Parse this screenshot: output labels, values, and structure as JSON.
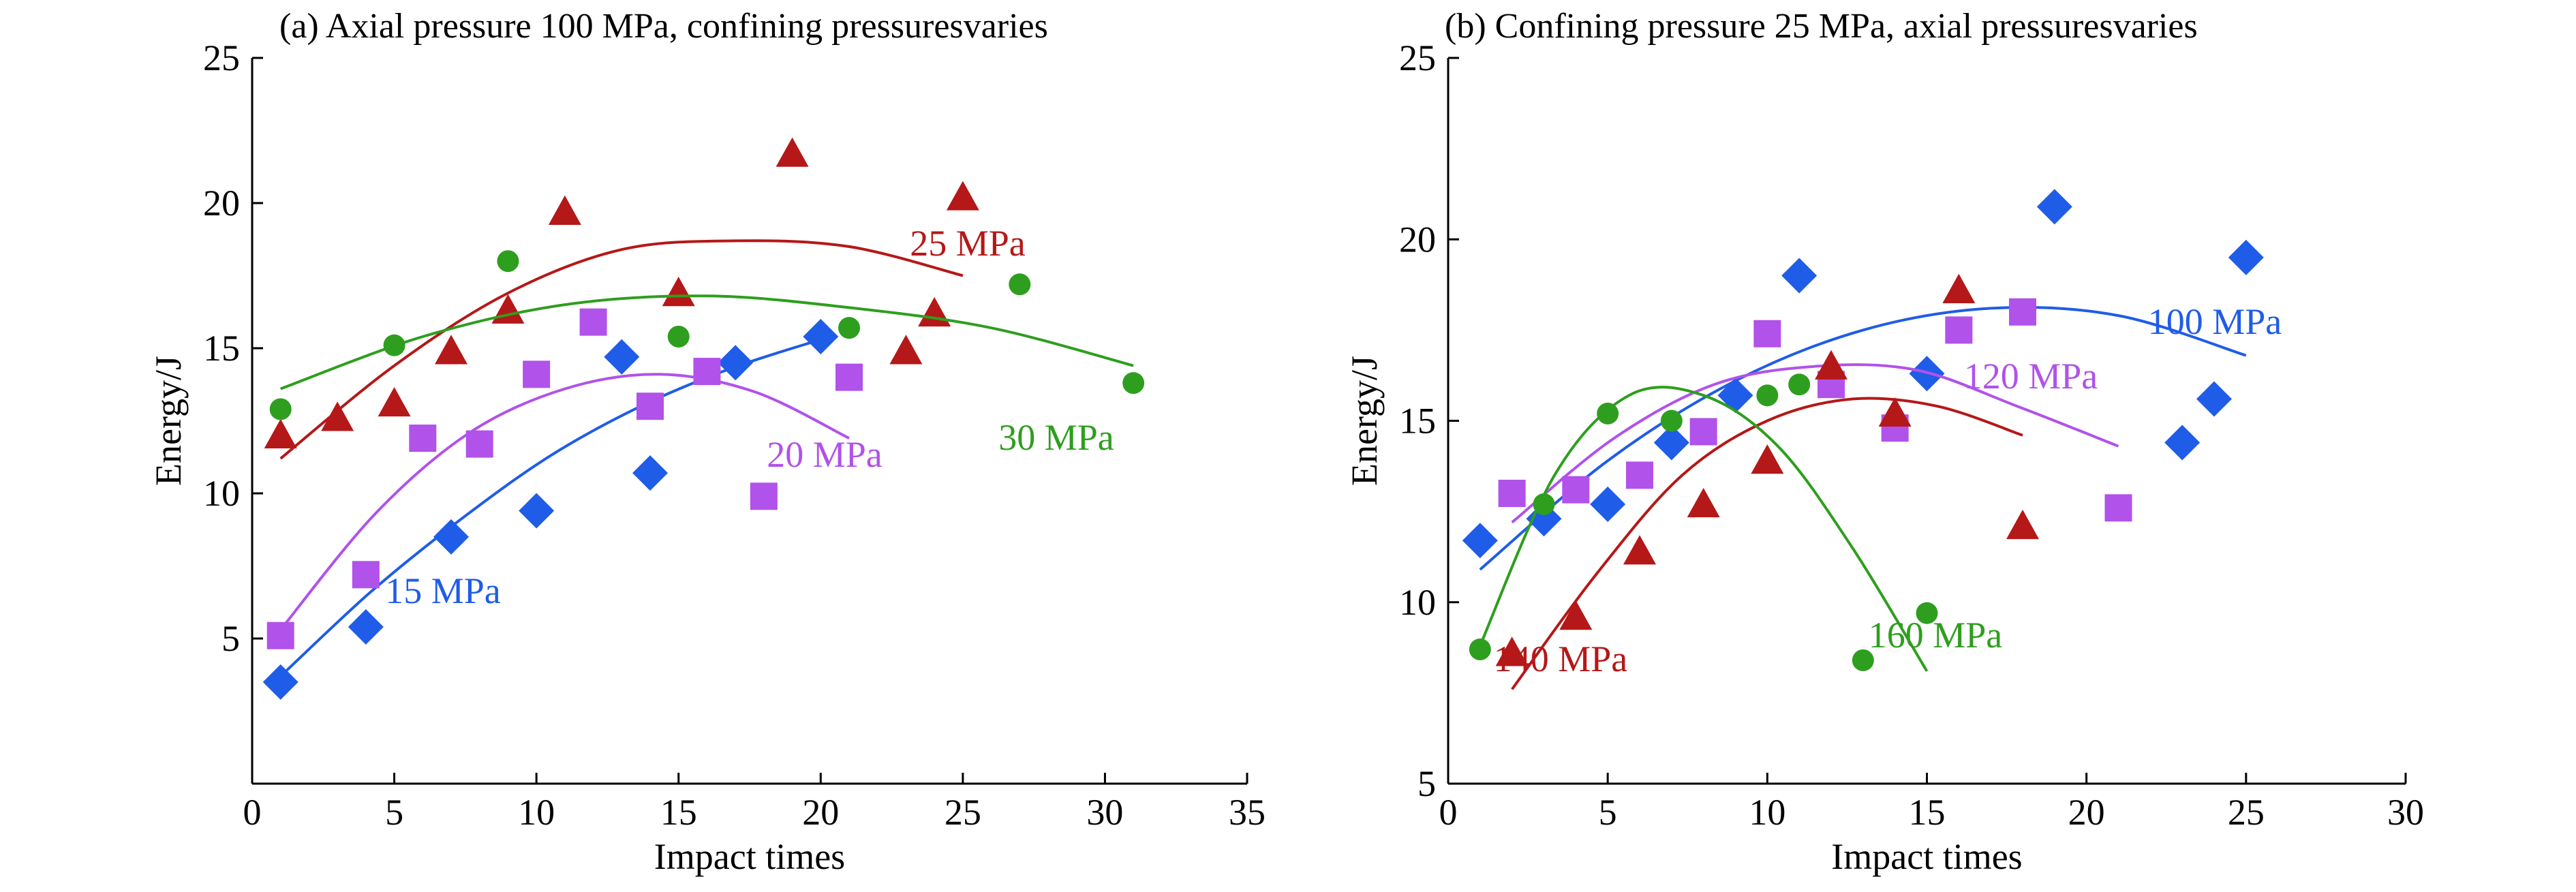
{
  "chart_data": [
    {
      "type": "scatter",
      "title": "(a) Axial pressure 100 MPa, confining pressuresvaries",
      "xlabel": "Impact times",
      "ylabel": "Energy/J",
      "xlim": [
        0,
        35
      ],
      "ylim": [
        0,
        25
      ],
      "xticks": [
        "0",
        "5",
        "10",
        "15",
        "20",
        "25",
        "30",
        "35"
      ],
      "yticks": [
        "5",
        "10",
        "15",
        "20",
        "25"
      ],
      "grid": false,
      "series": [
        {
          "name": "15 MPa",
          "color": "#1f5ce8",
          "marker": "diamond",
          "x": [
            1,
            4,
            7,
            10,
            13,
            14,
            17,
            20
          ],
          "y": [
            3.5,
            5.4,
            8.5,
            9.4,
            14.7,
            10.7,
            14.5,
            15.4
          ],
          "fit": {
            "x_start": 1,
            "x_end": 20,
            "y": [
              3.7,
              6.6,
              9.1,
              11.3,
              13.0,
              14.3,
              15.3
            ]
          }
        },
        {
          "name": "20 MPa",
          "color": "#b152ea",
          "marker": "square",
          "x": [
            1,
            4,
            6,
            8,
            10,
            12,
            14,
            16,
            18,
            21
          ],
          "y": [
            5.1,
            7.2,
            11.9,
            11.7,
            14.1,
            15.9,
            13.0,
            14.2,
            9.9,
            14.0
          ],
          "fit": {
            "x_start": 1,
            "x_end": 21,
            "y": [
              5.3,
              9.3,
              12.1,
              13.6,
              14.1,
              13.5,
              11.9
            ]
          }
        },
        {
          "name": "25 MPa",
          "color": "#b51818",
          "marker": "triangle",
          "x": [
            1,
            3,
            5,
            7,
            9,
            11,
            15,
            19,
            23,
            24,
            25
          ],
          "y": [
            12.0,
            12.6,
            13.1,
            14.9,
            16.3,
            19.7,
            16.9,
            21.7,
            14.9,
            16.2,
            20.2
          ],
          "fit": {
            "x_start": 1,
            "x_end": 25,
            "y": [
              11.2,
              14.4,
              16.9,
              18.4,
              18.7,
              18.5,
              17.5
            ]
          }
        },
        {
          "name": "30 MPa",
          "color": "#2e9e1e",
          "marker": "circle",
          "x": [
            1,
            5,
            9,
            15,
            21,
            27,
            31
          ],
          "y": [
            12.9,
            15.1,
            18.0,
            15.4,
            15.7,
            17.2,
            13.8
          ],
          "fit": {
            "x_start": 1,
            "x_end": 31,
            "y": [
              13.6,
              15.4,
              16.5,
              16.8,
              16.4,
              15.7,
              14.4
            ]
          }
        }
      ],
      "labels": [
        "15 MPa",
        "20 MPa",
        "25 MPa",
        "30 MPa"
      ]
    },
    {
      "type": "scatter",
      "title": "(b) Confining pressure 25 MPa, axial pressuresvaries",
      "xlabel": "Impact times",
      "ylabel": "Energy/J",
      "xlim": [
        0,
        30
      ],
      "ylim": [
        5,
        25
      ],
      "xticks": [
        "0",
        "5",
        "10",
        "15",
        "20",
        "25",
        "30"
      ],
      "yticks": [
        "5",
        "10",
        "15",
        "20",
        "25"
      ],
      "grid": false,
      "series": [
        {
          "name": "100 MPa",
          "color": "#1f5ce8",
          "marker": "diamond",
          "x": [
            1,
            3,
            5,
            7,
            9,
            11,
            15,
            19,
            23,
            24,
            25
          ],
          "y": [
            11.7,
            12.3,
            12.7,
            14.4,
            15.7,
            19.0,
            16.3,
            20.9,
            14.4,
            15.6,
            19.5
          ],
          "fit": {
            "x_start": 1,
            "x_end": 25,
            "y": [
              10.9,
              13.9,
              16.1,
              17.5,
              18.1,
              17.9,
              16.8
            ]
          }
        },
        {
          "name": "120 MPa",
          "color": "#b152ea",
          "marker": "square",
          "x": [
            2,
            4,
            6,
            8,
            10,
            12,
            14,
            16,
            18,
            21
          ],
          "y": [
            13.0,
            13.1,
            13.5,
            14.7,
            17.4,
            16.0,
            14.8,
            17.5,
            18.0,
            12.6
          ],
          "fit": {
            "x_start": 2,
            "x_end": 21,
            "y": [
              12.2,
              14.5,
              16.0,
              16.5,
              16.4,
              15.4,
              14.3
            ]
          }
        },
        {
          "name": "140 MPa",
          "color": "#b51818",
          "marker": "triangle",
          "x": [
            2,
            4,
            6,
            8,
            10,
            12,
            14,
            16,
            18
          ],
          "y": [
            8.6,
            9.6,
            11.4,
            12.7,
            13.9,
            16.5,
            15.2,
            18.6,
            12.1
          ],
          "fit": {
            "x_start": 2,
            "x_end": 18,
            "y": [
              7.6,
              10.8,
              13.5,
              15.0,
              15.6,
              15.4,
              14.6
            ]
          }
        },
        {
          "name": "160 MPa",
          "color": "#2e9e1e",
          "marker": "circle",
          "x": [
            1,
            3,
            5,
            7,
            10,
            11,
            13,
            15
          ],
          "y": [
            8.7,
            12.7,
            15.2,
            15.0,
            15.7,
            16.0,
            8.4,
            9.7
          ],
          "fit": {
            "x_start": 1,
            "x_end": 15,
            "y": [
              8.8,
              13.5,
              15.7,
              15.7,
              14.3,
              11.5,
              8.1
            ]
          }
        }
      ],
      "labels": [
        "100 MPa",
        "120 MPa",
        "140 MPa",
        "160 MPa"
      ]
    }
  ]
}
